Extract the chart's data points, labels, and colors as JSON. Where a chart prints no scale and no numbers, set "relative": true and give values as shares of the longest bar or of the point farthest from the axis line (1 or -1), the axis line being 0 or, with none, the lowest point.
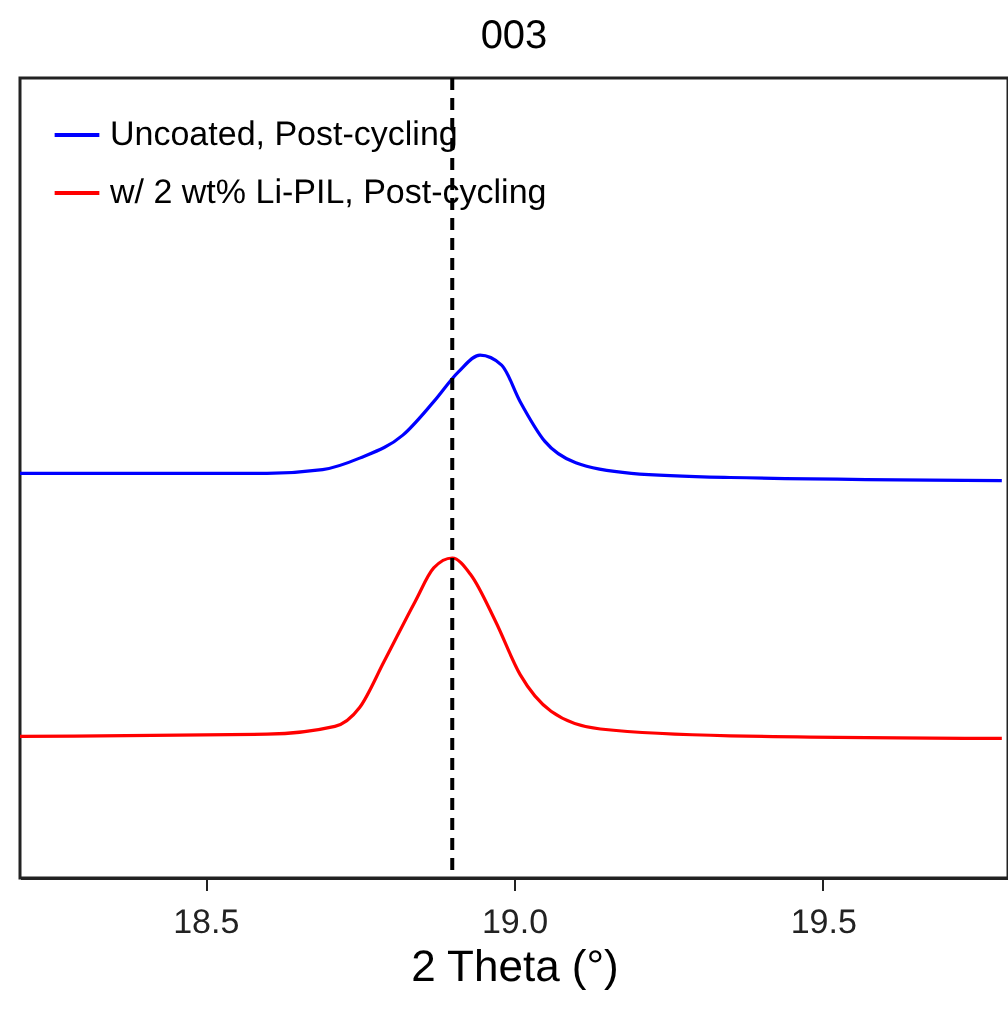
{
  "chart_data": {
    "type": "line",
    "title": "003",
    "xlabel": "2 Theta (°)",
    "relative": true,
    "xlim": [
      18.2,
      19.8
    ],
    "xticks": [
      18.5,
      {
        "value": 19.0,
        "label": "19.0"
      },
      19.5
    ],
    "tick_labels": "x",
    "grid": false,
    "legend": "top left",
    "marker": "none",
    "line_style": "solid",
    "series": [
      {
        "name": "Uncoated, Post-cycling",
        "color": "#0000ff",
        "x": [
          18.2,
          18.6,
          18.69,
          18.75,
          18.82,
          18.87,
          18.91,
          18.945,
          18.98,
          19.01,
          19.05,
          19.1,
          19.19,
          19.35,
          19.79
        ],
        "values": [
          0.774,
          0.774,
          0.781,
          0.803,
          0.847,
          0.911,
          0.968,
          1.0,
          0.981,
          0.911,
          0.835,
          0.794,
          0.774,
          0.766,
          0.76
        ]
      },
      {
        "name": "w/ 2 wt% Li-PIL, Post-cycling",
        "color": "#ff0000",
        "x": [
          18.2,
          18.6,
          18.71,
          18.75,
          18.79,
          18.84,
          18.87,
          18.9,
          18.93,
          18.97,
          19.01,
          19.06,
          19.14,
          19.35,
          19.79
        ],
        "values": [
          0.271,
          0.275,
          0.29,
          0.326,
          0.415,
          0.529,
          0.593,
          0.612,
          0.58,
          0.491,
          0.389,
          0.319,
          0.285,
          0.272,
          0.267
        ]
      }
    ],
    "ref_lines": [
      {
        "axis": "x",
        "value": 18.9,
        "color": "#000000",
        "line_style": "dashed"
      }
    ]
  }
}
